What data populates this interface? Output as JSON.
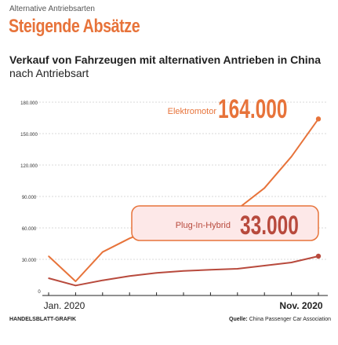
{
  "header": {
    "kicker": "Alternative Antriebsarten",
    "headline": "Steigende Absätze",
    "subtitle_bold": "Verkauf von Fahrzeugen mit alternativen Antrieben in China",
    "subtitle_rest": " nach Antriebsart"
  },
  "footer": {
    "brand": "HANDELSBLATT-GRAFIK",
    "source_label": "Quelle:",
    "source_text": " China Passenger Car Association"
  },
  "colors": {
    "elektro": "#e7733a",
    "hybrid": "#b84a3d",
    "grid": "#d9d9d9",
    "highlight_bg": "#fde8e8"
  },
  "chart_data": {
    "type": "line",
    "xlabel": "",
    "ylabel": "",
    "x_tick_labels": {
      "first": "Jan. 2020",
      "last": "Nov. 2020"
    },
    "x_tick_count": 11,
    "ylim": [
      0,
      180000
    ],
    "y_ticks": [
      0,
      30000,
      60000,
      90000,
      120000,
      150000,
      180000
    ],
    "y_tick_labels": [
      "0",
      "30.000",
      "60.000",
      "90.000",
      "120.000",
      "150.000",
      "180.000"
    ],
    "grid": true,
    "series": [
      {
        "name": "Elektromotor",
        "callout": "164.000",
        "values": [
          33000,
          9000,
          37000,
          50000,
          60000,
          72000,
          77000,
          78000,
          98000,
          128000,
          164000
        ]
      },
      {
        "name": "Plug-In-Hybrid",
        "callout": "33.000",
        "values": [
          12000,
          5000,
          10000,
          14000,
          17000,
          19000,
          20000,
          21000,
          24000,
          27000,
          33000
        ]
      }
    ]
  }
}
